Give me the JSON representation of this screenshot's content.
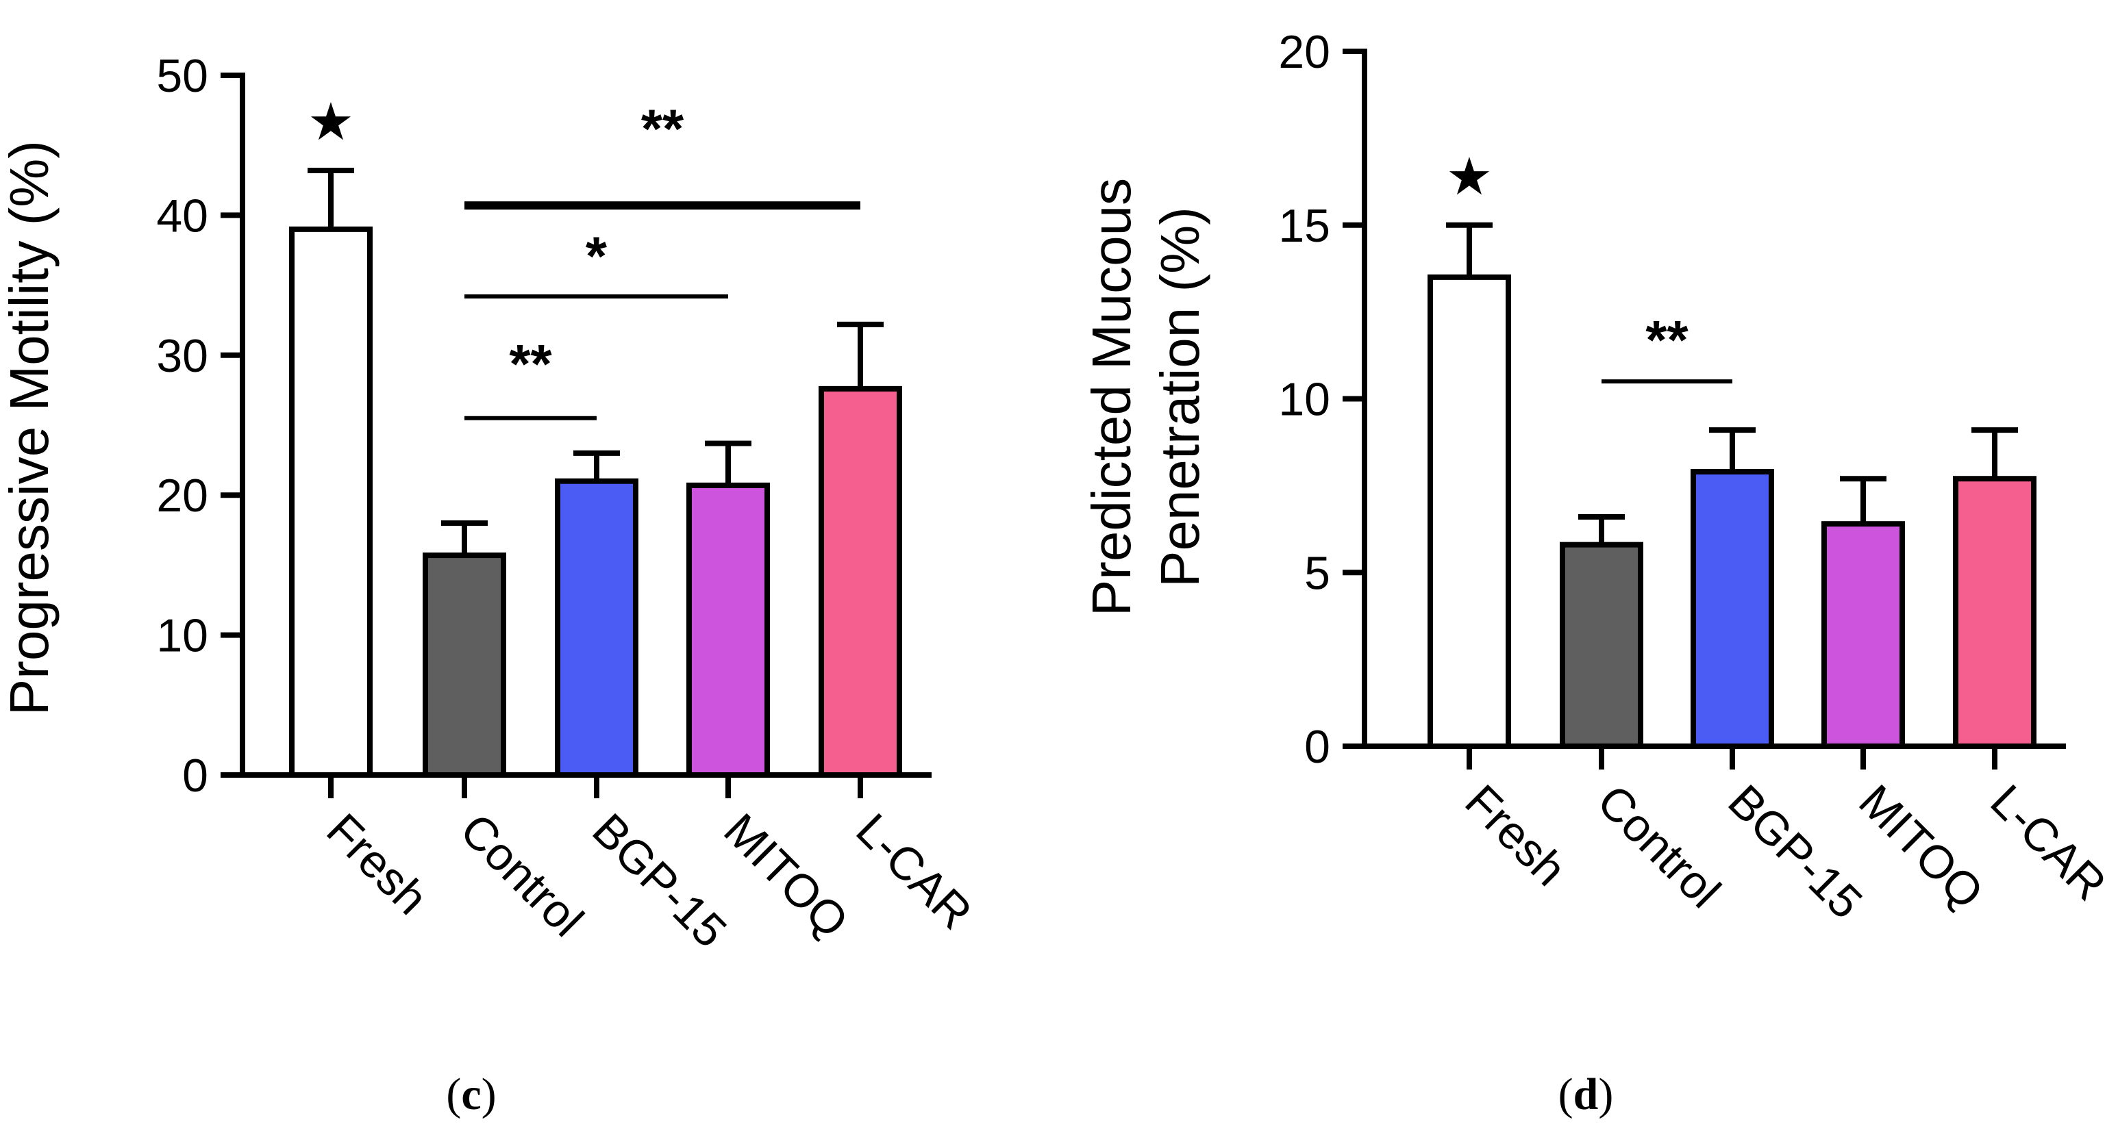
{
  "chart_data": [
    {
      "type": "bar",
      "panel_label_open": "(",
      "panel_label_letter": "c",
      "panel_label_close": ")",
      "title": "",
      "xlabel": "",
      "ylabel": "Progressive Motility (%)",
      "ylim": [
        0,
        50
      ],
      "yticks": [
        "0",
        "10",
        "20",
        "30",
        "40",
        "50"
      ],
      "categories": [
        "Fresh",
        "Control",
        "BGP-15",
        "MITOQ",
        "L-CAR"
      ],
      "values": [
        39,
        15.7,
        21,
        20.7,
        27.6
      ],
      "errors": [
        4.2,
        2.3,
        2,
        3,
        4.6
      ],
      "colors": [
        "#ffffff",
        "#5f5f5f",
        "#4b5cf5",
        "#cd55de",
        "#f45f8f"
      ],
      "marker": {
        "category": "Fresh",
        "symbol": "★"
      },
      "significance": [
        {
          "from": "Control",
          "to": "L-CAR",
          "y": 40.7,
          "label": "**",
          "label_y": 46.2
        },
        {
          "from": "Control",
          "to": "MITOQ",
          "y": 34.2,
          "label": "*",
          "label_y": 37.1
        },
        {
          "from": "Control",
          "to": "BGP-15",
          "y": 25.5,
          "label": "**",
          "label_y": 29.4
        }
      ]
    },
    {
      "type": "bar",
      "panel_label_open": "(",
      "panel_label_letter": "d",
      "panel_label_close": ")",
      "title": "",
      "xlabel": "",
      "ylabel_line1": "Predicted Mucous",
      "ylabel_line2": "Penetration (%)",
      "ylim": [
        0,
        20
      ],
      "yticks": [
        "0",
        "5",
        "10",
        "15",
        "20"
      ],
      "categories": [
        "Fresh",
        "Control",
        "BGP-15",
        "MITOQ",
        "L-CAR"
      ],
      "values": [
        13.5,
        5.8,
        7.9,
        6.4,
        7.7
      ],
      "errors": [
        1.5,
        0.8,
        1.2,
        1.3,
        1.4
      ],
      "colors": [
        "#ffffff",
        "#5f5f5f",
        "#4b5cf5",
        "#cd55de",
        "#f45f8f"
      ],
      "marker": {
        "category": "Fresh",
        "symbol": "★"
      },
      "significance": [
        {
          "from": "Control",
          "to": "BGP-15",
          "y": 10.5,
          "label": "**",
          "label_y": 11.7
        }
      ]
    }
  ]
}
